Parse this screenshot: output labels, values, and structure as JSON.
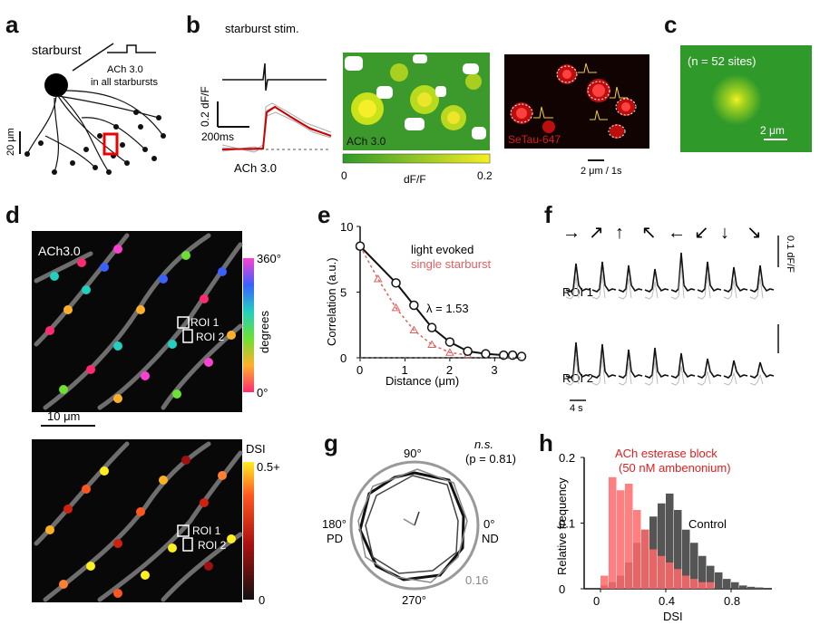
{
  "panels": {
    "a": {
      "label": "a",
      "starburst": "starburst",
      "ach_line1": "ACh 3.0",
      "ach_line2": "in all starbursts",
      "scale": "20 μm"
    },
    "b": {
      "label": "b",
      "stim": "starburst stim.",
      "ylabel": "0.2 dF/F",
      "time": "200ms",
      "trace_label": "ACh 3.0",
      "img1": "ACh 3.0",
      "img2": "SeTau-647",
      "cb_min": "0",
      "cb_max": "0.2",
      "cb_label": "dF/F",
      "scale": "2 μm / 1s"
    },
    "c": {
      "label": "c",
      "n": "(n = 52 sites)",
      "scale": "2 μm"
    },
    "d": {
      "label": "d",
      "img": "ACh3.0",
      "roi1": "ROI 1",
      "roi2": "ROI 2",
      "cb_top": "360°",
      "cb_bot": "0°",
      "cb_label": "degrees",
      "scale": "10 μm",
      "dsi_label": "DSI",
      "dsi_top": "0.5+",
      "dsi_bot": "0"
    },
    "e": {
      "label": "e",
      "title1": "light evoked",
      "title2": "single starburst",
      "lambda": "λ = 1.53",
      "xlabel": "Distance (μm)",
      "ylabel": "Correlation (a.u.)",
      "yticks": [
        "10",
        "5",
        "0"
      ],
      "xticks": [
        "0",
        "1",
        "2",
        "3"
      ]
    },
    "f": {
      "label": "f",
      "arrows": [
        "→",
        "↗",
        "↑",
        "↖",
        "←",
        "↙",
        "↓",
        "↘"
      ],
      "roi1": "ROI 1",
      "roi2": "ROI 2",
      "scale_y": "0.1 dF/F",
      "scale_t": "4 s"
    },
    "g": {
      "label": "g",
      "ns": "n.s.",
      "p": "(p = 0.81)",
      "a90": "90°",
      "a180": "180°",
      "pd": "PD",
      "a0": "0°",
      "nd": "ND",
      "a270": "270°",
      "r": "0.16"
    },
    "h": {
      "label": "h",
      "legend1": "ACh esterase block",
      "legend2": "(50 nM ambenonium)",
      "control": "Control",
      "xlabel": "DSI",
      "ylabel": "Relative frequency",
      "yticks": [
        "0.2",
        "0.1",
        "0"
      ],
      "xticks": [
        "0",
        "0.4",
        "0.8"
      ]
    }
  },
  "chart_data": [
    {
      "type": "line",
      "panel": "e",
      "xlabel": "Distance (μm)",
      "ylabel": "Correlation (a.u.)",
      "xlim": [
        0,
        3.6
      ],
      "ylim": [
        0,
        10
      ],
      "series": [
        {
          "name": "light evoked",
          "x": [
            0,
            0.8,
            1.2,
            1.6,
            2.0,
            2.4,
            2.8,
            3.2,
            3.4,
            3.6
          ],
          "y": [
            8.5,
            5.7,
            4.0,
            2.3,
            1.2,
            0.5,
            0.3,
            0.2,
            0.2,
            0.1
          ]
        },
        {
          "name": "single starburst",
          "x": [
            0,
            0.4,
            0.8,
            1.2,
            1.6,
            2.0,
            2.4
          ],
          "y": [
            8.5,
            6.0,
            3.8,
            2.1,
            1.0,
            0.4,
            0.2
          ]
        }
      ]
    },
    {
      "type": "bar",
      "panel": "h",
      "xlabel": "DSI",
      "ylabel": "Relative frequency",
      "xlim": [
        -0.1,
        1.05
      ],
      "ylim": [
        0,
        0.2
      ],
      "bin_width": 0.05,
      "series": [
        {
          "name": "Control",
          "x": [
            0.0,
            0.05,
            0.1,
            0.15,
            0.2,
            0.25,
            0.3,
            0.35,
            0.4,
            0.45,
            0.5,
            0.55,
            0.6,
            0.65,
            0.7,
            0.75,
            0.8,
            0.85,
            0.9,
            0.95
          ],
          "values": [
            0.005,
            0.01,
            0.02,
            0.04,
            0.07,
            0.09,
            0.11,
            0.13,
            0.145,
            0.12,
            0.09,
            0.07,
            0.05,
            0.035,
            0.025,
            0.015,
            0.01,
            0.005,
            0.003,
            0.002
          ]
        },
        {
          "name": "ACh esterase block",
          "x": [
            0.0,
            0.05,
            0.1,
            0.15,
            0.2,
            0.25,
            0.3,
            0.35,
            0.4,
            0.45,
            0.5,
            0.55,
            0.6,
            0.65
          ],
          "values": [
            0.02,
            0.17,
            0.15,
            0.16,
            0.12,
            0.09,
            0.06,
            0.05,
            0.04,
            0.03,
            0.02,
            0.015,
            0.01,
            0.01
          ]
        }
      ]
    }
  ]
}
